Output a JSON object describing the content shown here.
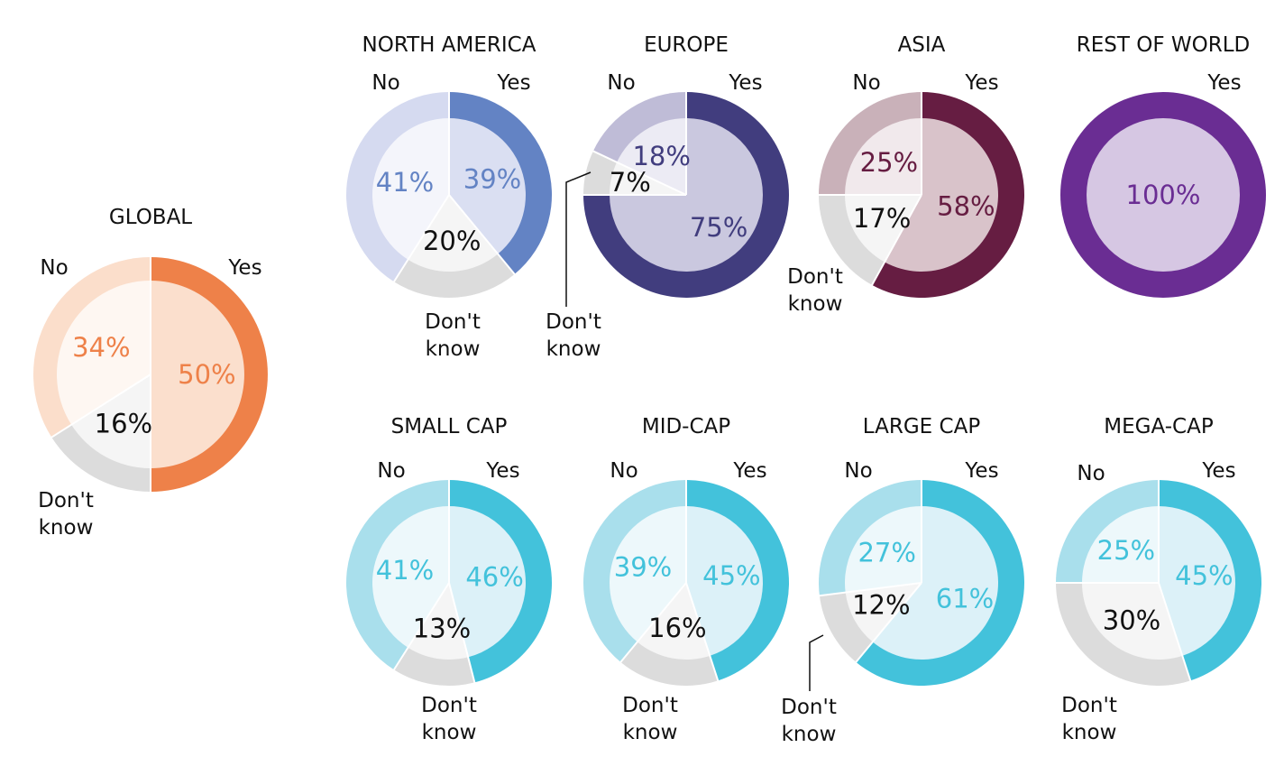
{
  "category_labels": {
    "yes": "Yes",
    "no": "No",
    "dont_know_line1": "Don't",
    "dont_know_line2": "know"
  },
  "chart_data": [
    {
      "type": "pie",
      "title": "GLOBAL",
      "slices": [
        {
          "label": "Yes",
          "value": 50
        },
        {
          "label": "Don't know",
          "value": 16
        },
        {
          "label": "No",
          "value": 34
        }
      ],
      "colors": {
        "yes_outer": "#EE8149",
        "yes_inner": "#FBDFCD",
        "yes_text": "#EE8149",
        "no_outer": "#FBDECB",
        "no_inner": "#FEF7F2",
        "no_text": "#EE8149",
        "dk_outer": "#DCDCDC",
        "dk_inner": "#F5F5F5",
        "dk_text": "#111111"
      }
    },
    {
      "type": "pie",
      "title": "NORTH AMERICA",
      "slices": [
        {
          "label": "Yes",
          "value": 39
        },
        {
          "label": "Don't know",
          "value": 20
        },
        {
          "label": "No",
          "value": 41
        }
      ],
      "colors": {
        "yes_outer": "#6383C4",
        "yes_inner": "#DADFF2",
        "yes_text": "#6383C4",
        "no_outer": "#D5DAF0",
        "no_inner": "#F4F5FB",
        "no_text": "#6383C4",
        "dk_outer": "#DCDCDC",
        "dk_inner": "#F5F5F5",
        "dk_text": "#111111"
      }
    },
    {
      "type": "pie",
      "title": "EUROPE",
      "slices": [
        {
          "label": "Yes",
          "value": 75
        },
        {
          "label": "Don't know",
          "value": 7
        },
        {
          "label": "No",
          "value": 18
        }
      ],
      "colors": {
        "yes_outer": "#413D7E",
        "yes_inner": "#CAC8DF",
        "yes_text": "#413D7E",
        "no_outer": "#BFBCD7",
        "no_inner": "#ECEBF4",
        "no_text": "#413D7E",
        "dk_outer": "#DCDCDC",
        "dk_inner": "#F5F5F5",
        "dk_text": "#111111"
      }
    },
    {
      "type": "pie",
      "title": "ASIA",
      "slices": [
        {
          "label": "Yes",
          "value": 58
        },
        {
          "label": "Don't know",
          "value": 17
        },
        {
          "label": "No",
          "value": 25
        }
      ],
      "colors": {
        "yes_outer": "#661D42",
        "yes_inner": "#D9C3CA",
        "yes_text": "#661D42",
        "no_outer": "#C9B1B9",
        "no_inner": "#F1E9EC",
        "no_text": "#661D42",
        "dk_outer": "#DCDCDC",
        "dk_inner": "#F5F5F5",
        "dk_text": "#111111"
      }
    },
    {
      "type": "pie",
      "title": "REST OF WORLD",
      "slices": [
        {
          "label": "Yes",
          "value": 100
        },
        {
          "label": "Don't know",
          "value": 0
        },
        {
          "label": "No",
          "value": 0
        }
      ],
      "colors": {
        "yes_outer": "#6A2D93",
        "yes_inner": "#D6C7E3",
        "yes_text": "#6A2D93",
        "no_outer": "#D6C7E3",
        "no_inner": "#F1ECF6",
        "no_text": "#6A2D93",
        "dk_outer": "#DCDCDC",
        "dk_inner": "#F5F5F5",
        "dk_text": "#111111"
      }
    },
    {
      "type": "pie",
      "title": "SMALL CAP",
      "slices": [
        {
          "label": "Yes",
          "value": 46
        },
        {
          "label": "Don't know",
          "value": 13
        },
        {
          "label": "No",
          "value": 41
        }
      ],
      "colors": {
        "yes_outer": "#43C2DB",
        "yes_inner": "#DCF1F8",
        "yes_text": "#43C2DB",
        "no_outer": "#A9DFEC",
        "no_inner": "#EDF8FB",
        "no_text": "#43C2DB",
        "dk_outer": "#DCDCDC",
        "dk_inner": "#F5F5F5",
        "dk_text": "#111111"
      }
    },
    {
      "type": "pie",
      "title": "MID-CAP",
      "slices": [
        {
          "label": "Yes",
          "value": 45
        },
        {
          "label": "Don't know",
          "value": 16
        },
        {
          "label": "No",
          "value": 39
        }
      ],
      "colors": {
        "yes_outer": "#43C2DB",
        "yes_inner": "#DCF1F8",
        "yes_text": "#43C2DB",
        "no_outer": "#A9DFEC",
        "no_inner": "#EDF8FB",
        "no_text": "#43C2DB",
        "dk_outer": "#DCDCDC",
        "dk_inner": "#F5F5F5",
        "dk_text": "#111111"
      }
    },
    {
      "type": "pie",
      "title": "LARGE CAP",
      "slices": [
        {
          "label": "Yes",
          "value": 61
        },
        {
          "label": "Don't know",
          "value": 12
        },
        {
          "label": "No",
          "value": 27
        }
      ],
      "colors": {
        "yes_outer": "#43C2DB",
        "yes_inner": "#DCF1F8",
        "yes_text": "#43C2DB",
        "no_outer": "#A9DFEC",
        "no_inner": "#EDF8FB",
        "no_text": "#43C2DB",
        "dk_outer": "#DCDCDC",
        "dk_inner": "#F5F5F5",
        "dk_text": "#111111"
      }
    },
    {
      "type": "pie",
      "title": "MEGA-CAP",
      "slices": [
        {
          "label": "Yes",
          "value": 45
        },
        {
          "label": "Don't know",
          "value": 30
        },
        {
          "label": "No",
          "value": 25
        }
      ],
      "colors": {
        "yes_outer": "#43C2DB",
        "yes_inner": "#DCF1F8",
        "yes_text": "#43C2DB",
        "no_outer": "#A9DFEC",
        "no_inner": "#EDF8FB",
        "no_text": "#43C2DB",
        "dk_outer": "#DCDCDC",
        "dk_inner": "#F5F5F5",
        "dk_text": "#111111"
      }
    }
  ]
}
